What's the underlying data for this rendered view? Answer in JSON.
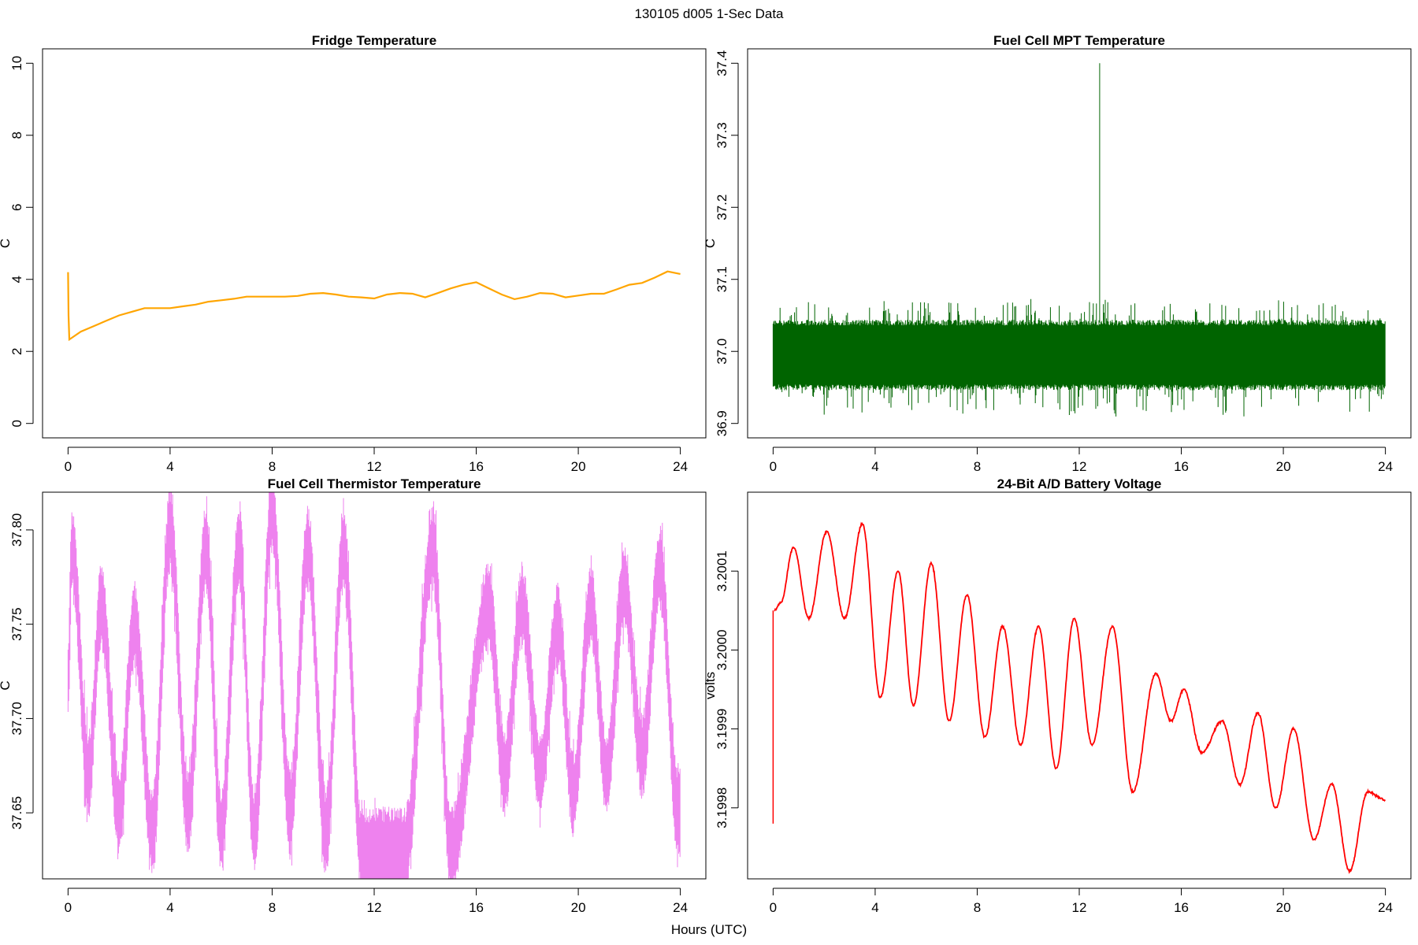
{
  "suptitle": "130105   d005   1-Sec Data",
  "xlabel": "Hours (UTC)",
  "chart_data": [
    {
      "type": "line",
      "title": "Fridge Temperature",
      "xlabel": "",
      "ylabel": "C",
      "xlim": [
        -1,
        25
      ],
      "ylim": [
        -0.4,
        10.4
      ],
      "xticks": [
        0,
        4,
        8,
        12,
        16,
        20,
        24
      ],
      "yticks": [
        0,
        2,
        4,
        6,
        8,
        10
      ],
      "ytick_labels": [
        "0",
        "2",
        "4",
        "6",
        "8",
        "10"
      ],
      "grid": false,
      "color": "#FFA500",
      "series": [
        {
          "x": [
            0,
            0.02,
            0.05,
            0.5,
            1,
            1.5,
            2,
            2.5,
            3,
            3.5,
            4,
            4.5,
            5,
            5.5,
            6,
            6.5,
            7,
            7.5,
            8,
            8.5,
            9,
            9.5,
            10,
            10.5,
            11,
            11.5,
            12,
            12.5,
            13,
            13.5,
            14,
            14.5,
            15,
            15.5,
            16,
            16.5,
            17,
            17.5,
            18,
            18.5,
            19,
            19.5,
            20,
            20.5,
            21,
            21.5,
            22,
            22.5,
            23,
            23.5,
            24
          ],
          "values": [
            4.2,
            3.0,
            2.33,
            2.55,
            2.7,
            2.85,
            3.0,
            3.1,
            3.2,
            3.2,
            3.2,
            3.25,
            3.3,
            3.38,
            3.42,
            3.46,
            3.52,
            3.52,
            3.52,
            3.52,
            3.54,
            3.6,
            3.62,
            3.58,
            3.52,
            3.5,
            3.47,
            3.58,
            3.62,
            3.6,
            3.5,
            3.62,
            3.75,
            3.85,
            3.92,
            3.75,
            3.58,
            3.45,
            3.52,
            3.62,
            3.6,
            3.5,
            3.55,
            3.6,
            3.6,
            3.72,
            3.85,
            3.9,
            4.05,
            4.22,
            4.15
          ]
        }
      ]
    },
    {
      "type": "line",
      "title": "Fuel Cell MPT Temperature",
      "xlabel": "",
      "ylabel": "C",
      "xlim": [
        -1,
        25
      ],
      "ylim": [
        36.88,
        37.42
      ],
      "xticks": [
        0,
        4,
        8,
        12,
        16,
        20,
        24
      ],
      "yticks": [
        36.9,
        37.0,
        37.1,
        37.2,
        37.3,
        37.4
      ],
      "ytick_labels": [
        "36.9",
        "37.0",
        "37.1",
        "37.2",
        "37.3",
        "37.4"
      ],
      "grid": false,
      "color": "#006400",
      "series": [
        {
          "noise_center": 36.995,
          "noise_band": [
            36.95,
            37.04
          ],
          "noise_range": [
            36.9,
            37.08
          ],
          "spike": {
            "x": 12.8,
            "y": 37.4
          }
        }
      ]
    },
    {
      "type": "line",
      "title": "Fuel Cell Thermistor Temperature",
      "xlabel": "",
      "ylabel": "C",
      "xlim": [
        -1,
        25
      ],
      "ylim": [
        37.615,
        37.82
      ],
      "xticks": [
        0,
        4,
        8,
        12,
        16,
        20,
        24
      ],
      "yticks": [
        37.65,
        37.7,
        37.75,
        37.8
      ],
      "ytick_labels": [
        "37.65",
        "37.70",
        "37.75",
        "37.80"
      ],
      "grid": false,
      "color": "#EE82EE",
      "series": [
        {
          "peaks_x": [
            0.15,
            1.3,
            2.6,
            4.0,
            5.4,
            6.7,
            8.0,
            9.4,
            10.8,
            14.3,
            16.5,
            17.8,
            19.2,
            20.5,
            21.8,
            23.2
          ],
          "peaks_y": [
            37.79,
            37.76,
            37.75,
            37.8,
            37.79,
            37.79,
            37.81,
            37.79,
            37.79,
            37.79,
            37.76,
            37.76,
            37.75,
            37.76,
            37.77,
            37.78
          ],
          "troughs_x": [
            0.8,
            2.0,
            3.3,
            4.7,
            6.0,
            7.3,
            8.7,
            10.1,
            11.5,
            13.2,
            15.0,
            17.1,
            18.5,
            19.8,
            21.1,
            22.5,
            23.9
          ],
          "troughs_y": [
            37.67,
            37.65,
            37.64,
            37.65,
            37.64,
            37.64,
            37.65,
            37.64,
            37.63,
            37.63,
            37.63,
            37.67,
            37.67,
            37.66,
            37.67,
            37.68,
            37.65
          ],
          "noise_amplitude": 0.018
        }
      ]
    },
    {
      "type": "line",
      "title": "24-Bit A/D Battery Voltage",
      "xlabel": "",
      "ylabel": "volts",
      "xlim": [
        -1,
        25
      ],
      "ylim": [
        3.19971,
        3.2002
      ],
      "xticks": [
        0,
        4,
        8,
        12,
        16,
        20,
        24
      ],
      "yticks": [
        3.1998,
        3.1999,
        3.2,
        3.2001
      ],
      "ytick_labels": [
        "3.1998",
        "3.1999",
        "3.2000",
        "3.2001"
      ],
      "grid": false,
      "color": "#FF0000",
      "series": [
        {
          "x": [
            0,
            0.02,
            0.05,
            0.3,
            0.8,
            1.4,
            2.1,
            2.8,
            3.5,
            4.2,
            4.9,
            5.5,
            6.2,
            6.9,
            7.6,
            8.3,
            9.0,
            9.7,
            10.4,
            11.1,
            11.8,
            12.5,
            13.3,
            14.1,
            15.0,
            15.6,
            16.1,
            16.8,
            17.6,
            18.3,
            19.0,
            19.7,
            20.4,
            21.2,
            21.9,
            22.6,
            23.3,
            24.0
          ],
          "values": [
            3.19978,
            3.20005,
            3.20005,
            3.20006,
            3.20013,
            3.20004,
            3.20015,
            3.20004,
            3.20016,
            3.19994,
            3.2001,
            3.19993,
            3.20011,
            3.19991,
            3.20007,
            3.19989,
            3.20003,
            3.19988,
            3.20003,
            3.19985,
            3.20004,
            3.19988,
            3.20003,
            3.19982,
            3.19997,
            3.19991,
            3.19995,
            3.19987,
            3.19991,
            3.19983,
            3.19992,
            3.1998,
            3.1999,
            3.19976,
            3.19983,
            3.19972,
            3.19982,
            3.19981
          ]
        }
      ]
    }
  ]
}
